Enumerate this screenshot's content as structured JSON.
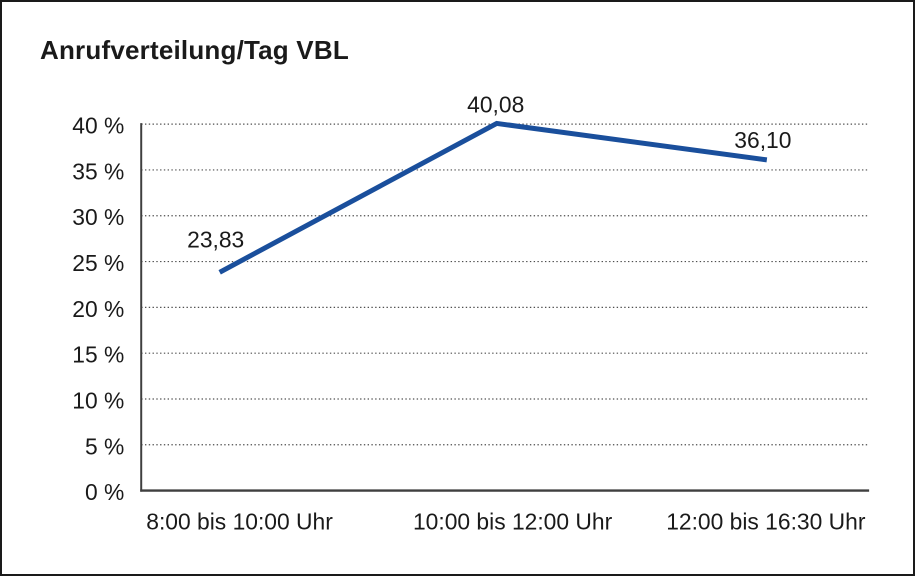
{
  "chart_data": {
    "type": "line",
    "title": "Anrufverteilung/Tag VBL",
    "categories": [
      "8:00 bis 10:00 Uhr",
      "10:00 bis 12:00 Uhr",
      "12:00 bis 16:30 Uhr"
    ],
    "values": [
      23.83,
      40.08,
      36.1
    ],
    "value_labels": [
      "23,83",
      "40,08",
      "36,10"
    ],
    "xlabel": "",
    "ylabel": "",
    "ylim": [
      0,
      40
    ],
    "ytick_step": 5,
    "ytick_labels": [
      "0 %",
      "5 %",
      "10 %",
      "15 %",
      "20 %",
      "25 %",
      "30 %",
      "35 %",
      "40 %"
    ],
    "grid": "horizontal-dotted",
    "legend": "none",
    "colors": {
      "line": "#1a4f9c",
      "text": "#1a1a1a",
      "grid": "#4f4f4f",
      "axis": "#3f3f3f",
      "border": "#1a1a1a",
      "background": "#ffffff"
    }
  }
}
